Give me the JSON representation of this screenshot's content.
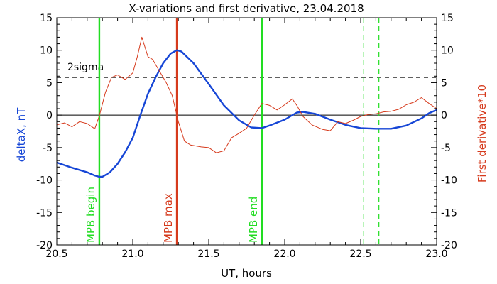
{
  "chart_data": {
    "type": "line",
    "title": "X-variations and first derivative, 23.04.2018",
    "xlabel": "UT, hours",
    "ylabel_left": "deltaX, nT",
    "ylabel_right": "First derivative*10",
    "xlim": [
      20.5,
      23.0
    ],
    "ylim": [
      -20,
      15
    ],
    "x_ticks": [
      "20.5",
      "21.0",
      "21.5",
      "22.0",
      "22.5",
      "23.0"
    ],
    "y_ticks": [
      "-20",
      "-15",
      "-10",
      "-5",
      "0",
      "5",
      "10",
      "15"
    ],
    "threshold": {
      "label": "2sigma",
      "y": 5.8
    },
    "series": [
      {
        "name": "deltaX, nT",
        "color": "#1646d6",
        "points": [
          [
            20.5,
            -7.3
          ],
          [
            20.6,
            -8.1
          ],
          [
            20.7,
            -8.8
          ],
          [
            20.75,
            -9.3
          ],
          [
            20.78,
            -9.5
          ],
          [
            20.8,
            -9.5
          ],
          [
            20.85,
            -8.8
          ],
          [
            20.9,
            -7.5
          ],
          [
            20.95,
            -5.7
          ],
          [
            21.0,
            -3.5
          ],
          [
            21.05,
            0.0
          ],
          [
            21.1,
            3.3
          ],
          [
            21.15,
            5.8
          ],
          [
            21.2,
            8.0
          ],
          [
            21.25,
            9.5
          ],
          [
            21.29,
            10.0
          ],
          [
            21.32,
            9.8
          ],
          [
            21.4,
            8.0
          ],
          [
            21.5,
            4.8
          ],
          [
            21.6,
            1.5
          ],
          [
            21.7,
            -0.8
          ],
          [
            21.78,
            -1.9
          ],
          [
            21.85,
            -2.0
          ],
          [
            21.9,
            -1.6
          ],
          [
            22.0,
            -0.7
          ],
          [
            22.08,
            0.4
          ],
          [
            22.12,
            0.5
          ],
          [
            22.2,
            0.2
          ],
          [
            22.3,
            -0.7
          ],
          [
            22.4,
            -1.5
          ],
          [
            22.5,
            -2.0
          ],
          [
            22.6,
            -2.1
          ],
          [
            22.7,
            -2.1
          ],
          [
            22.8,
            -1.6
          ],
          [
            22.9,
            -0.5
          ],
          [
            22.95,
            0.3
          ],
          [
            23.0,
            0.8
          ]
        ]
      },
      {
        "name": "First derivative*10",
        "color": "#d63a1c",
        "points": [
          [
            20.5,
            -1.5
          ],
          [
            20.55,
            -1.2
          ],
          [
            20.6,
            -1.8
          ],
          [
            20.65,
            -1.0
          ],
          [
            20.7,
            -1.3
          ],
          [
            20.75,
            -2.1
          ],
          [
            20.78,
            -0.1
          ],
          [
            20.82,
            3.5
          ],
          [
            20.86,
            5.8
          ],
          [
            20.9,
            6.2
          ],
          [
            20.95,
            5.5
          ],
          [
            21.0,
            6.5
          ],
          [
            21.03,
            9.0
          ],
          [
            21.06,
            12.0
          ],
          [
            21.08,
            10.5
          ],
          [
            21.1,
            9.0
          ],
          [
            21.13,
            8.6
          ],
          [
            21.17,
            7.0
          ],
          [
            21.22,
            5.0
          ],
          [
            21.26,
            3.0
          ],
          [
            21.3,
            -1.0
          ],
          [
            21.34,
            -4.0
          ],
          [
            21.38,
            -4.6
          ],
          [
            21.45,
            -4.9
          ],
          [
            21.5,
            -5.0
          ],
          [
            21.55,
            -5.8
          ],
          [
            21.6,
            -5.5
          ],
          [
            21.65,
            -3.5
          ],
          [
            21.7,
            -2.8
          ],
          [
            21.75,
            -2.0
          ],
          [
            21.8,
            0.0
          ],
          [
            21.85,
            1.8
          ],
          [
            21.9,
            1.5
          ],
          [
            21.95,
            0.8
          ],
          [
            22.0,
            1.6
          ],
          [
            22.05,
            2.5
          ],
          [
            22.08,
            1.5
          ],
          [
            22.12,
            -0.2
          ],
          [
            22.18,
            -1.5
          ],
          [
            22.25,
            -2.2
          ],
          [
            22.3,
            -2.4
          ],
          [
            22.35,
            -1.0
          ],
          [
            22.4,
            -1.3
          ],
          [
            22.45,
            -0.8
          ],
          [
            22.5,
            -0.2
          ],
          [
            22.55,
            0.1
          ],
          [
            22.6,
            0.2
          ],
          [
            22.65,
            0.5
          ],
          [
            22.7,
            0.6
          ],
          [
            22.75,
            0.9
          ],
          [
            22.8,
            1.6
          ],
          [
            22.85,
            2.0
          ],
          [
            22.9,
            2.7
          ],
          [
            22.95,
            1.8
          ],
          [
            23.0,
            1.0
          ]
        ]
      }
    ],
    "markers": [
      {
        "label": "MPB begin",
        "x": 20.78,
        "color": "#22dd22",
        "style": "solid"
      },
      {
        "label": "MPB max",
        "x": 21.29,
        "color": "#d63a1c",
        "style": "solid"
      },
      {
        "label": "MPB end",
        "x": 21.85,
        "color": "#22dd22",
        "style": "solid"
      },
      {
        "label": "",
        "x": 22.52,
        "color": "#22dd22",
        "style": "dashed"
      },
      {
        "label": "",
        "x": 22.62,
        "color": "#22dd22",
        "style": "dashed"
      }
    ],
    "grid": false,
    "zero_line": true
  }
}
